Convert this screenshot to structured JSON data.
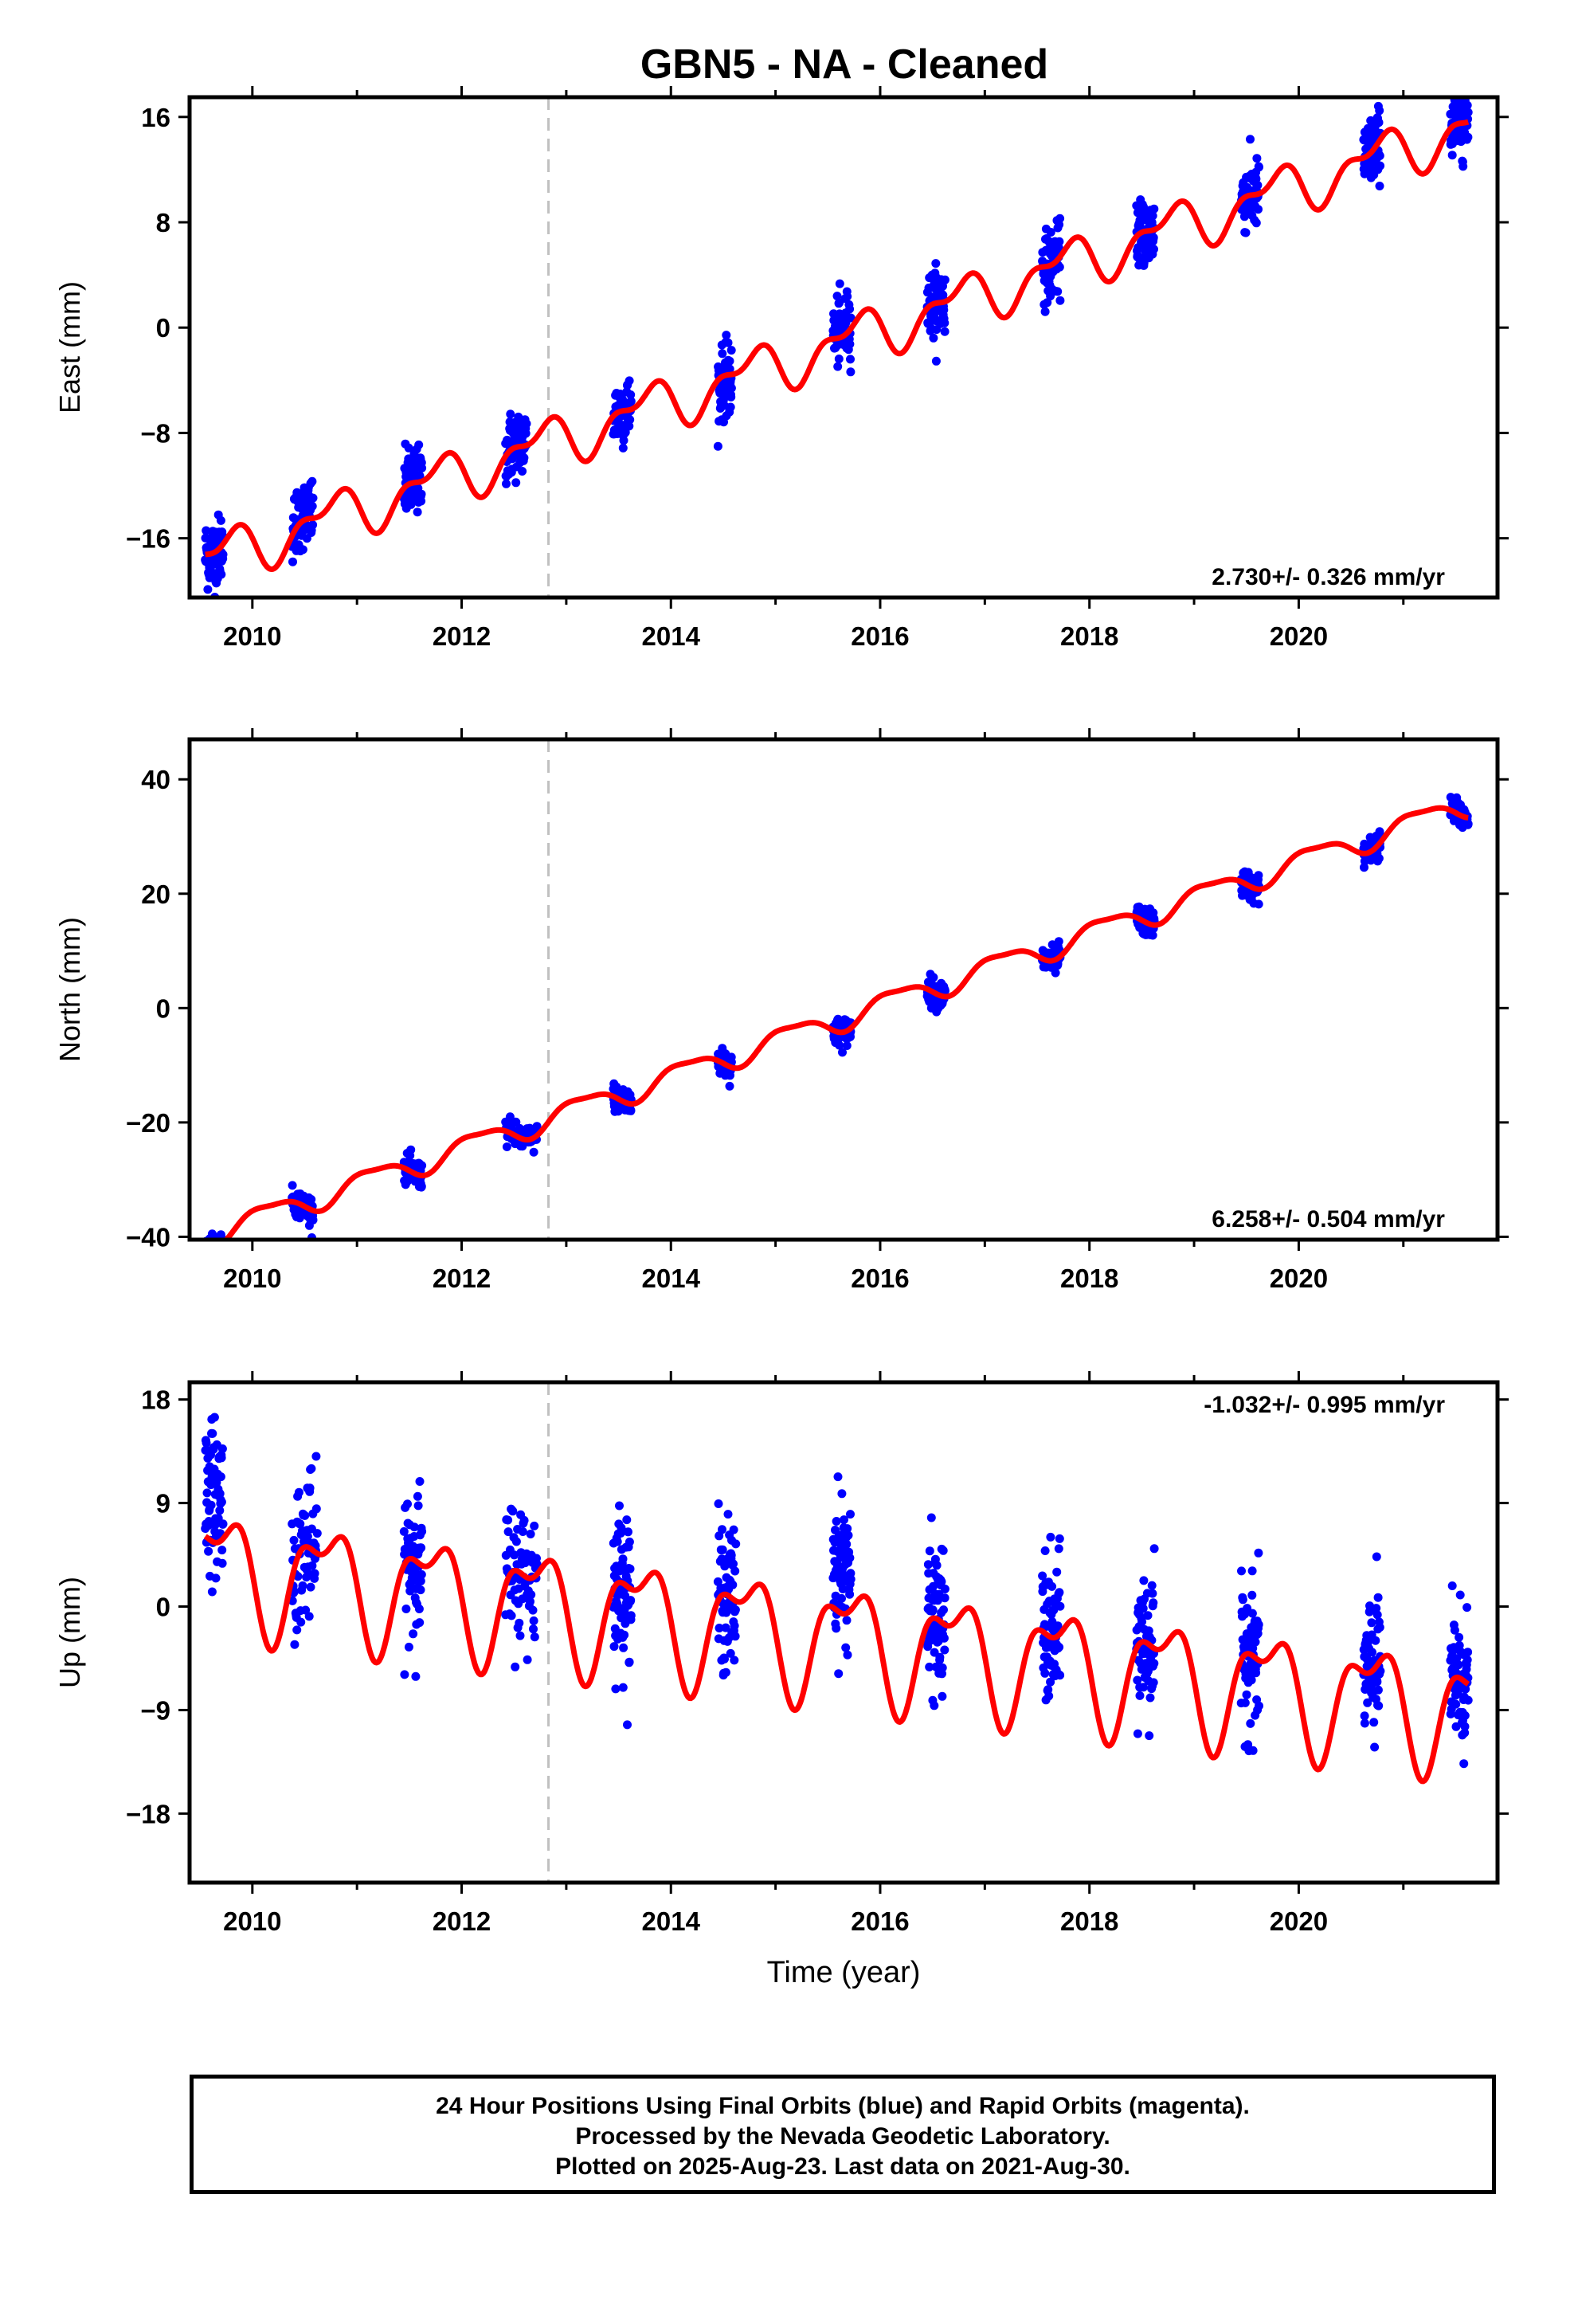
{
  "title": "GBN5  - NA - Cleaned",
  "footer": {
    "line1": "24 Hour Positions Using Final Orbits (blue) and Rapid Orbits (magenta).",
    "line2": "Processed by the Nevada Geodetic Laboratory.",
    "line3": "Plotted on 2025-Aug-23. Last data on 2021-Aug-30."
  },
  "colors": {
    "data": "#0000ff",
    "model": "#ff0000",
    "equipment_change": "#c0c0c0"
  },
  "chart_data": [
    {
      "type": "scatter",
      "ylabel": "East (mm)",
      "xlabel": "",
      "xlim": [
        2009.4,
        2021.9
      ],
      "ylim": [
        -20.5,
        17.5
      ],
      "x_ticks": [
        2010,
        2012,
        2014,
        2016,
        2018,
        2020
      ],
      "y_ticks": [
        -16,
        -8,
        0,
        8,
        16
      ],
      "rate_label": "2.730+/- 0.326 mm/yr",
      "rate_position": "bottom-right",
      "equipment_change_x": 2012.83,
      "trend": {
        "slope": 2.73,
        "y2010": -16.5,
        "annual_amp": 1.6,
        "phase": 0.5,
        "semi_amp": 0.9,
        "semi_phase": 0.8
      },
      "data_segments": [
        {
          "start": 2009.55,
          "end": 2009.72,
          "offset": 0
        },
        {
          "start": 2010.38,
          "end": 2010.58,
          "offset": 0.5
        },
        {
          "start": 2011.45,
          "end": 2011.62,
          "offset": 0
        },
        {
          "start": 2012.42,
          "end": 2012.62,
          "offset": 0.3
        },
        {
          "start": 2013.45,
          "end": 2013.62,
          "offset": 0
        },
        {
          "start": 2014.45,
          "end": 2014.58,
          "offset": -0.5
        },
        {
          "start": 2015.55,
          "end": 2015.72,
          "offset": 0.5
        },
        {
          "start": 2016.45,
          "end": 2016.62,
          "offset": 0
        },
        {
          "start": 2017.55,
          "end": 2017.72,
          "offset": 0
        },
        {
          "start": 2018.45,
          "end": 2018.62,
          "offset": 0
        },
        {
          "start": 2019.45,
          "end": 2019.62,
          "offset": 0
        },
        {
          "start": 2020.62,
          "end": 2020.78,
          "offset": 0
        },
        {
          "start": 2021.45,
          "end": 2021.62,
          "offset": 0
        }
      ],
      "scatter_sd": 1.3
    },
    {
      "type": "scatter",
      "ylabel": "North (mm)",
      "xlabel": "",
      "xlim": [
        2009.4,
        2021.9
      ],
      "ylim": [
        -40.5,
        47
      ],
      "x_ticks": [
        2010,
        2012,
        2014,
        2016,
        2018,
        2020
      ],
      "y_ticks": [
        -40,
        -20,
        0,
        20,
        40
      ],
      "rate_label": "6.258+/- 0.504 mm/yr",
      "rate_position": "bottom-right",
      "equipment_change_x": 2012.83,
      "trend": {
        "slope": 6.258,
        "y2010": -37.0,
        "annual_amp": 2.0,
        "phase": 0.9,
        "semi_amp": 0.6,
        "semi_phase": 0.3
      },
      "data_segments": [
        {
          "start": 2009.55,
          "end": 2009.72,
          "offset": 0
        },
        {
          "start": 2010.38,
          "end": 2010.58,
          "offset": 0
        },
        {
          "start": 2011.45,
          "end": 2011.62,
          "offset": 0
        },
        {
          "start": 2012.42,
          "end": 2012.72,
          "offset": 0
        },
        {
          "start": 2013.45,
          "end": 2013.62,
          "offset": 0
        },
        {
          "start": 2014.45,
          "end": 2014.58,
          "offset": 0
        },
        {
          "start": 2015.55,
          "end": 2015.72,
          "offset": 0
        },
        {
          "start": 2016.45,
          "end": 2016.62,
          "offset": 0
        },
        {
          "start": 2017.55,
          "end": 2017.72,
          "offset": 0
        },
        {
          "start": 2018.45,
          "end": 2018.62,
          "offset": 0
        },
        {
          "start": 2019.45,
          "end": 2019.62,
          "offset": 0
        },
        {
          "start": 2020.62,
          "end": 2020.78,
          "offset": 0
        },
        {
          "start": 2021.45,
          "end": 2021.62,
          "offset": 0
        }
      ],
      "scatter_sd": 1.2
    },
    {
      "type": "scatter",
      "ylabel": "Up (mm)",
      "xlabel": "Time (year)",
      "xlim": [
        2009.4,
        2021.9
      ],
      "ylim": [
        -24,
        19.5
      ],
      "x_ticks": [
        2010,
        2012,
        2014,
        2016,
        2018,
        2020
      ],
      "y_ticks": [
        -18,
        -9,
        0,
        9,
        18
      ],
      "rate_label": "-1.032+/- 0.995 mm/yr",
      "rate_position": "top-right",
      "equipment_change_x": 2012.83,
      "trend": {
        "slope": -1.032,
        "y2010": 3.0,
        "annual_amp": 4.5,
        "phase": 0.45,
        "semi_amp": 2.2,
        "semi_phase": 0.3
      },
      "data_segments": [
        {
          "start": 2009.55,
          "end": 2009.72,
          "offset": 4
        },
        {
          "start": 2010.38,
          "end": 2010.62,
          "offset": 0
        },
        {
          "start": 2011.45,
          "end": 2011.62,
          "offset": 0
        },
        {
          "start": 2012.42,
          "end": 2012.72,
          "offset": 0
        },
        {
          "start": 2013.45,
          "end": 2013.62,
          "offset": 0
        },
        {
          "start": 2014.45,
          "end": 2014.62,
          "offset": 0
        },
        {
          "start": 2015.55,
          "end": 2015.72,
          "offset": 4
        },
        {
          "start": 2016.45,
          "end": 2016.62,
          "offset": 0
        },
        {
          "start": 2017.55,
          "end": 2017.72,
          "offset": 0
        },
        {
          "start": 2018.45,
          "end": 2018.62,
          "offset": 0
        },
        {
          "start": 2019.45,
          "end": 2019.62,
          "offset": 0
        },
        {
          "start": 2020.62,
          "end": 2020.78,
          "offset": 0
        },
        {
          "start": 2021.45,
          "end": 2021.62,
          "offset": 0
        }
      ],
      "scatter_sd": 3.2
    }
  ]
}
